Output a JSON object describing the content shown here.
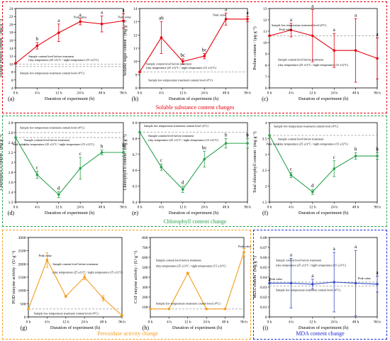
{
  "groups": [
    {
      "title": "Soluble substance content changes",
      "color": "#e6000e"
    },
    {
      "title": "Chlorophyll content change",
      "color": "#2ca24d"
    },
    {
      "title": "Peroxidase activity change",
      "color": "#f39c1e"
    },
    {
      "title": "MDA content change",
      "color": "#1f2ccf"
    }
  ],
  "colors": {
    "red": "#e6000e",
    "green": "#2ca24d",
    "orange": "#f39c1e",
    "blue": "#3b4fc8",
    "ref": "#a8a8a8"
  },
  "chart_data": [
    {
      "id": "a",
      "panel_label": "(a)",
      "type": "line",
      "color": "red",
      "x": [
        "0 h",
        "4 h",
        "12 h",
        "24 h",
        "48 h",
        "96 h"
      ],
      "xlabel": "Duration of experiment (h)",
      "ylabel": "Soluble protein content / (mg·g⁻¹)",
      "ylim": [
        4,
        24
      ],
      "yticks": [
        4,
        6,
        8,
        10,
        12,
        14,
        16,
        18,
        20,
        22,
        24
      ],
      "values": [
        10.2,
        14.6,
        17.9,
        20.7,
        20.1,
        20.9
      ],
      "errors": [
        0,
        0.8,
        2.2,
        0.8,
        2.0,
        1.8
      ],
      "letters": [
        "",
        "b",
        "a",
        "a",
        "a",
        "a"
      ],
      "upper_ref": 10.0,
      "lower_ref": 9.4,
      "notes": [
        {
          "text": "Sample content level before treatment",
          "x": 0.6,
          "y": 11.7
        },
        {
          "text": "(day temperature (25 ±1)°C / night temperature (15 ±1)°C)",
          "x": 0.6,
          "y": 10.8
        },
        {
          "text": "Sample low temperature treatment content level (4°C)",
          "x": 0.2,
          "y": 7.5
        },
        {
          "text": "Peak value",
          "x": 2.7,
          "y": 21.6
        },
        {
          "text": "Peak value",
          "x": 4.75,
          "y": 21.6
        }
      ]
    },
    {
      "id": "b",
      "panel_label": "(b)",
      "type": "line",
      "color": "red",
      "x": [
        "0 h",
        "4 h",
        "12 h",
        "24 h",
        "48 h",
        "96 h"
      ],
      "xlabel": "Duration of experiment (h)",
      "ylabel": "Soluble sugar content / (mg·g⁻¹)",
      "ylim": [
        8,
        14
      ],
      "yticks": [
        8,
        9,
        10,
        11,
        12,
        13,
        14
      ],
      "values": [
        9.2,
        11.8,
        10.0,
        10.4,
        13.2,
        13.2
      ],
      "errors": [
        0,
        1.2,
        0.2,
        0.2,
        0.45,
        0.2
      ],
      "letters": [
        "",
        "ab",
        "bc",
        "bc",
        "a",
        "a"
      ],
      "upper_ref": 9.2,
      "lower_ref": 9.2,
      "notes": [
        {
          "text": "Peak value",
          "x": 3.4,
          "y": 13.45
        },
        {
          "text": "Sample content level before treatment",
          "x": 0.3,
          "y": 9.75
        },
        {
          "text": "(day temperature (25 ±1)°C / night temperature (15 ±1)°C)",
          "x": 0.3,
          "y": 9.45
        },
        {
          "text": "Sample low temperature treatment content level (4°C)",
          "x": 0.4,
          "y": 8.5
        }
      ]
    },
    {
      "id": "c",
      "panel_label": "(c)",
      "type": "line",
      "color": "red",
      "x": [
        "0 h",
        "4 h",
        "12 h",
        "24 h",
        "48 h",
        "96 h"
      ],
      "xlabel": "Duration of experiment (h)",
      "ylabel": "Proline content / (μg·g⁻¹)",
      "ylim": [
        6,
        13
      ],
      "yticks": [
        6,
        7,
        8,
        9,
        10,
        11,
        12,
        13
      ],
      "values": [
        10.6,
        11.1,
        10.6,
        9.3,
        9.3,
        8.6
      ],
      "errors": [
        0,
        0.6,
        2.3,
        1.5,
        2.8,
        1.8
      ],
      "letters": [
        "",
        "a",
        "a",
        "a",
        "a",
        "a"
      ],
      "upper_ref": 10.6,
      "lower_ref": 10.6,
      "notes": [
        {
          "text": "Sample low temperature treatment level (4°C)",
          "x": 0.1,
          "y": 11.45
        },
        {
          "text": "Peak value",
          "x": 0.45,
          "y": 11.05
        },
        {
          "text": "Sample content level before treatment",
          "x": 0.4,
          "y": 8.4
        },
        {
          "text": "(day temperature (25 ±1)°C / night temperature (15 ±1)°C)",
          "x": 0.4,
          "y": 7.95
        }
      ]
    },
    {
      "id": "d",
      "panel_label": "(d)",
      "type": "line",
      "color": "green",
      "x": [
        "0 h",
        "4 h",
        "12 h",
        "24 h",
        "48 h",
        "96 h"
      ],
      "xlabel": "Duration of experiment (h)",
      "ylabel": "Chlorophyll a content / (mg·g⁻¹)",
      "ylim": [
        1.2,
        2.8
      ],
      "yticks": [
        1.2,
        1.4,
        1.6,
        1.8,
        2.0,
        2.2,
        2.4,
        2.6,
        2.8
      ],
      "values": [
        2.5,
        1.75,
        1.35,
        1.88,
        2.2,
        2.2
      ],
      "errors": [
        0,
        0.07,
        0.06,
        0.22,
        0.05,
        0.07
      ],
      "letters": [
        "",
        "c",
        "d",
        "c",
        "b",
        "b"
      ],
      "upper_ref": 2.6,
      "lower_ref": 2.5,
      "notes": [
        {
          "text": "Sample low temperature treatment content level (4°C)",
          "x": 0.2,
          "y": 2.68
        },
        {
          "text": "Sample content level before treatment",
          "x": 0.4,
          "y": 2.43
        },
        {
          "text": "(day temperature (25 ±1)°C / night temperature (15 ±1)°C)",
          "x": 0.4,
          "y": 2.34
        },
        {
          "text": "Peak value",
          "x": -0.15,
          "y": 2.34
        }
      ]
    },
    {
      "id": "e",
      "panel_label": "(e)",
      "type": "line",
      "color": "green",
      "x": [
        "0 h",
        "4 h",
        "12 h",
        "24 h",
        "48 h",
        "96 h"
      ],
      "xlabel": "Duration of experiment (h)",
      "ylabel": "Chlorophyll b content / (mg·g⁻¹)",
      "ylim": [
        0.4,
        0.9
      ],
      "yticks": [
        0.4,
        0.5,
        0.6,
        0.7,
        0.8,
        0.9
      ],
      "values": [
        0.84,
        0.62,
        0.48,
        0.67,
        0.77,
        0.77
      ],
      "errors": [
        0,
        0.02,
        0.02,
        0.05,
        0.03,
        0.03
      ],
      "letters": [
        "",
        "c",
        "d",
        "bc",
        "b",
        "b"
      ],
      "upper_ref": 0.84,
      "lower_ref": 0.84,
      "notes": [
        {
          "text": "Sample low temperature treatment content level (4°C)",
          "x": 0.2,
          "y": 0.874
        },
        {
          "text": "Sample content level before treatment",
          "x": 0.4,
          "y": 0.81
        },
        {
          "text": "(day temperature (25 ±1)°C / night temperature (15 ±1)°C)",
          "x": 0.4,
          "y": 0.785
        }
      ]
    },
    {
      "id": "f",
      "panel_label": "(f)",
      "type": "line",
      "color": "green",
      "x": [
        "0 h",
        "4 h",
        "12 h",
        "24 h",
        "48 h",
        "96 h"
      ],
      "xlabel": "Duration of experiment (h)",
      "ylabel": "Total chlorophyll content / (mg·g⁻¹)",
      "ylim": [
        1.5,
        4.0
      ],
      "yticks": [
        1.5,
        2.0,
        2.5,
        3.0,
        3.5,
        4.0
      ],
      "values": [
        3.6,
        2.35,
        1.82,
        2.55,
        2.95,
        2.95
      ],
      "errors": [
        0,
        0.08,
        0.08,
        0.25,
        0.1,
        0.1
      ],
      "letters": [
        "",
        "c",
        "d",
        "c",
        "b",
        "b"
      ],
      "upper_ref": 3.6,
      "lower_ref": 3.6,
      "notes": [
        {
          "text": "Sample low temperature treatment content level (4°C)",
          "x": 0.2,
          "y": 3.85
        },
        {
          "text": "Sample content level before treatment",
          "x": 0.4,
          "y": 3.45
        },
        {
          "text": "(day temperature (25 ±1)°C / night temperature (15 ±1)°C)",
          "x": 0.4,
          "y": 3.3
        },
        {
          "text": "Peak value",
          "x": -0.15,
          "y": 3.3
        }
      ]
    },
    {
      "id": "g",
      "panel_label": "(g)",
      "type": "line",
      "color": "orange",
      "x": [
        "0 h",
        "4 h",
        "12 h",
        "24 h",
        "48 h",
        "96 h"
      ],
      "xlabel": "Duration of experiment (h)",
      "ylabel": "POD enzyme activity / (U·g⁻¹)",
      "ylim": [
        0,
        3000
      ],
      "yticks": [
        0,
        500,
        1000,
        1500,
        2000,
        2500,
        3000
      ],
      "values": [
        300,
        2150,
        780,
        1500,
        700,
        50
      ],
      "errors": [
        0,
        280,
        40,
        100,
        100,
        20
      ],
      "letters": [
        "",
        "",
        "",
        "",
        "",
        ""
      ],
      "upper_ref": 300,
      "lower_ref": 300,
      "notes": [
        {
          "text": "Peak value",
          "x": 0.55,
          "y": 2280
        },
        {
          "text": "Sample content level before treatment",
          "x": 1.3,
          "y": 1950
        },
        {
          "text": "(day temperature (25 ±1)°C / night temperature (15 ±1)°C)",
          "x": 1.3,
          "y": 1650
        },
        {
          "text": "Sample low temperature treatment content level (4°C)",
          "x": 0.3,
          "y": 100
        }
      ]
    },
    {
      "id": "h",
      "panel_label": "(h)",
      "type": "line",
      "color": "orange",
      "x": [
        "0 h",
        "4 h",
        "12 h",
        "24 h",
        "48 h",
        "96 h"
      ],
      "xlabel": "Duration of experiment (h)",
      "ylabel": "CAT enzyme activity / (U·g⁻¹)",
      "ylim": [
        0,
        800
      ],
      "yticks": [
        100,
        200,
        300,
        400,
        500,
        600,
        700,
        800
      ],
      "values": [
        80,
        80,
        440,
        80,
        80,
        650
      ],
      "errors": [
        0,
        0,
        10,
        0,
        0,
        40
      ],
      "letters": [
        "",
        "",
        "",
        "",
        "",
        ""
      ],
      "upper_ref": 80,
      "lower_ref": 80,
      "notes": [
        {
          "text": "Sample content level before treatment",
          "x": 0.3,
          "y": 560
        },
        {
          "text": "(day temperature (25 ±1)°C / night temperature (15 ±1)°C)",
          "x": 0.3,
          "y": 505
        },
        {
          "text": "Peak value",
          "x": 4.7,
          "y": 700
        },
        {
          "text": "Sample low temperature treatment content level (4°C)",
          "x": 0.3,
          "y": 125
        }
      ]
    },
    {
      "id": "i",
      "panel_label": "(i)",
      "type": "line",
      "color": "blue",
      "x": [
        "0 h",
        "4 h",
        "12 h",
        "24 h",
        "48 h",
        "96 h"
      ],
      "xlabel": "Duration of experiment (h)",
      "ylabel": "MDA content / (mg·g⁻¹)",
      "ylim": [
        0,
        0.08
      ],
      "yticks": [
        0,
        0.01,
        0.02,
        0.03,
        0.04,
        0.05,
        0.06,
        0.07,
        0.08
      ],
      "values": [
        0.034,
        0.034,
        0.033,
        0.035,
        0.034,
        0.033
      ],
      "errors": [
        0,
        0.025,
        0.005,
        0.03,
        0.033,
        0.008
      ],
      "letters": [
        "a",
        "a",
        "a",
        "a",
        "a",
        "a"
      ],
      "upper_ref": 0.035,
      "lower_ref": 0.031,
      "notes": [
        {
          "text": "Sample content level before treatment",
          "x": 0.3,
          "y": 0.056
        },
        {
          "text": "(day temperature (25 ±1)°C / night temperature (15 ±1)°C)",
          "x": 0.3,
          "y": 0.051
        },
        {
          "text": "Peak value",
          "x": 0.0,
          "y": 0.037
        },
        {
          "text": "Peak value",
          "x": 4.1,
          "y": 0.038
        },
        {
          "text": "Sample low temperature treatment content level (4°C)",
          "x": 0.3,
          "y": 0.026
        }
      ]
    }
  ]
}
